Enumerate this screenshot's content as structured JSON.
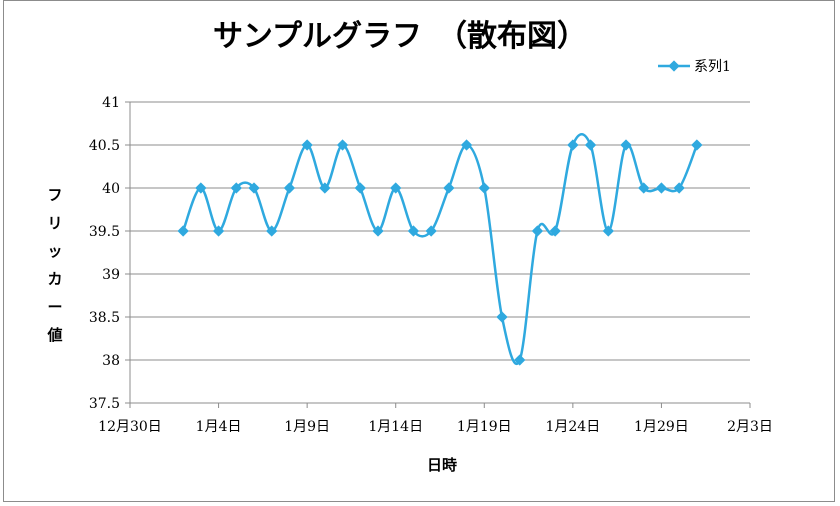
{
  "chart_data": {
    "type": "scatter",
    "title": "サンプルグラフ　（散布図）",
    "xlabel": "日時",
    "ylabel": "フリッカー値",
    "ylim": [
      37.5,
      41
    ],
    "yticks": [
      37.5,
      38,
      38.5,
      39,
      39.5,
      40,
      40.5,
      41
    ],
    "xticks": [
      "12月30日",
      "1月4日",
      "1月9日",
      "1月14日",
      "1月19日",
      "1月24日",
      "1月29日",
      "2月3日"
    ],
    "x_start_label": "12月30日",
    "x_step_days": 5,
    "grid": true,
    "legend": "top-right",
    "line_style": "smoothed line with diamond markers",
    "color": "#2fa9df",
    "series": [
      {
        "name": "系列1",
        "points": [
          {
            "x": "1月2日",
            "y": 39.5
          },
          {
            "x": "1月3日",
            "y": 40
          },
          {
            "x": "1月4日",
            "y": 39.5
          },
          {
            "x": "1月5日",
            "y": 40
          },
          {
            "x": "1月6日",
            "y": 40
          },
          {
            "x": "1月7日",
            "y": 39.5
          },
          {
            "x": "1月8日",
            "y": 40
          },
          {
            "x": "1月9日",
            "y": 40.5
          },
          {
            "x": "1月10日",
            "y": 40
          },
          {
            "x": "1月11日",
            "y": 40.5
          },
          {
            "x": "1月12日",
            "y": 40
          },
          {
            "x": "1月13日",
            "y": 39.5
          },
          {
            "x": "1月14日",
            "y": 40
          },
          {
            "x": "1月15日",
            "y": 39.5
          },
          {
            "x": "1月16日",
            "y": 39.5
          },
          {
            "x": "1月17日",
            "y": 40
          },
          {
            "x": "1月18日",
            "y": 40.5
          },
          {
            "x": "1月19日",
            "y": 40
          },
          {
            "x": "1月20日",
            "y": 38.5
          },
          {
            "x": "1月21日",
            "y": 38
          },
          {
            "x": "1月22日",
            "y": 39.5
          },
          {
            "x": "1月23日",
            "y": 39.5
          },
          {
            "x": "1月24日",
            "y": 40.5
          },
          {
            "x": "1月25日",
            "y": 40.5
          },
          {
            "x": "1月26日",
            "y": 39.5
          },
          {
            "x": "1月27日",
            "y": 40.5
          },
          {
            "x": "1月28日",
            "y": 40
          },
          {
            "x": "1月29日",
            "y": 40
          },
          {
            "x": "1月30日",
            "y": 40
          },
          {
            "x": "1月31日",
            "y": 40.5
          }
        ]
      }
    ]
  }
}
